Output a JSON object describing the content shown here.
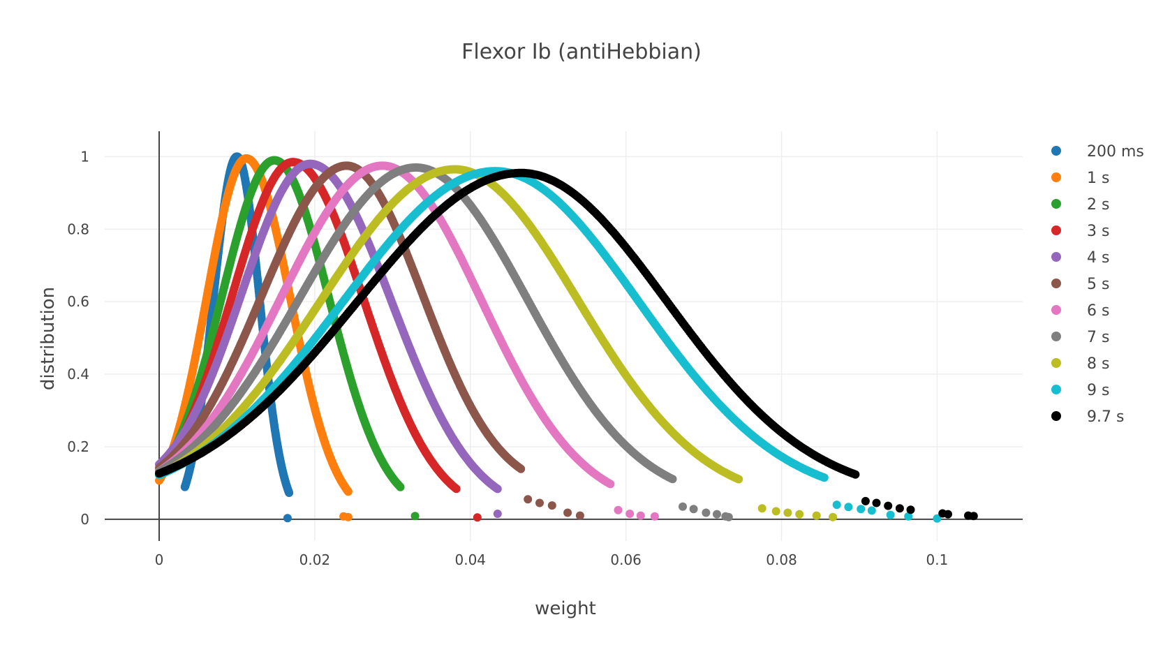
{
  "chart_data": {
    "type": "scatter",
    "title": "Flexor Ib (antiHebbian)",
    "xlabel": "weight",
    "ylabel": "distribution",
    "xlim": [
      -0.007,
      0.111
    ],
    "ylim": [
      -0.06,
      1.07
    ],
    "xticks": [
      0,
      0.02,
      0.04,
      0.06,
      0.08,
      0.1
    ],
    "xtick_labels": [
      "0",
      "0.02",
      "0.04",
      "0.06",
      "0.08",
      "0.1"
    ],
    "yticks": [
      0,
      0.2,
      0.4,
      0.6,
      0.8,
      1
    ],
    "ytick_labels": [
      "0",
      "0.2",
      "0.4",
      "0.6",
      "0.8",
      "1"
    ],
    "grid": true,
    "legend_position": "right",
    "series": [
      {
        "name": "200 ms",
        "color": "#1f77b4",
        "start": 0.0033,
        "end": 0.0167,
        "peak_x": 0.01,
        "peak_y": 1.0,
        "y_start": 0.0,
        "y_end": 0.002,
        "tail_points": [
          [
            0.0165,
            0.003
          ]
        ]
      },
      {
        "name": "1 s",
        "color": "#ff7f0e",
        "start": 0.0,
        "end": 0.0243,
        "peak_x": 0.0112,
        "peak_y": 0.995,
        "y_start": 0.02,
        "y_end": 0.006,
        "tail_points": [
          [
            0.0237,
            0.008
          ],
          [
            0.0243,
            0.006
          ]
        ]
      },
      {
        "name": "2 s",
        "color": "#2ca02c",
        "start": 0.0,
        "end": 0.031,
        "peak_x": 0.0148,
        "peak_y": 0.99,
        "y_start": 0.04,
        "y_end": 0.02,
        "tail_points": [
          [
            0.0329,
            0.009
          ]
        ]
      },
      {
        "name": "3 s",
        "color": "#d62728",
        "start": 0.0,
        "end": 0.0382,
        "peak_x": 0.0172,
        "peak_y": 0.985,
        "y_start": 0.05,
        "y_end": 0.015,
        "tail_points": [
          [
            0.0409,
            0.005
          ]
        ]
      },
      {
        "name": "4 s",
        "color": "#9467bd",
        "start": 0.0,
        "end": 0.0435,
        "peak_x": 0.0194,
        "peak_y": 0.98,
        "y_start": 0.07,
        "y_end": 0.015,
        "tail_points": [
          [
            0.0435,
            0.015
          ]
        ]
      },
      {
        "name": "5 s",
        "color": "#8c564b",
        "start": 0.0,
        "end": 0.0465,
        "peak_x": 0.0241,
        "peak_y": 0.975,
        "y_start": 0.06,
        "y_end": 0.075,
        "tail_points": [
          [
            0.0474,
            0.055
          ],
          [
            0.0489,
            0.045
          ],
          [
            0.0505,
            0.038
          ],
          [
            0.0525,
            0.018
          ],
          [
            0.0541,
            0.01
          ]
        ]
      },
      {
        "name": "6 s",
        "color": "#e377c2",
        "start": 0.0,
        "end": 0.058,
        "peak_x": 0.0287,
        "peak_y": 0.975,
        "y_start": 0.05,
        "y_end": 0.03,
        "tail_points": [
          [
            0.059,
            0.025
          ],
          [
            0.0605,
            0.015
          ],
          [
            0.0619,
            0.01
          ],
          [
            0.0637,
            0.008
          ]
        ]
      },
      {
        "name": "7 s",
        "color": "#7f7f7f",
        "start": 0.0,
        "end": 0.066,
        "peak_x": 0.033,
        "peak_y": 0.97,
        "y_start": 0.05,
        "y_end": 0.045,
        "tail_points": [
          [
            0.0673,
            0.035
          ],
          [
            0.0687,
            0.028
          ],
          [
            0.0703,
            0.018
          ],
          [
            0.0717,
            0.014
          ],
          [
            0.0728,
            0.008
          ],
          [
            0.0732,
            0.006
          ]
        ]
      },
      {
        "name": "8 s",
        "color": "#bcbd22",
        "start": 0.0,
        "end": 0.0745,
        "peak_x": 0.038,
        "peak_y": 0.965,
        "y_start": 0.04,
        "y_end": 0.045,
        "tail_points": [
          [
            0.0775,
            0.03
          ],
          [
            0.0793,
            0.022
          ],
          [
            0.0808,
            0.018
          ],
          [
            0.0823,
            0.014
          ],
          [
            0.0845,
            0.01
          ],
          [
            0.0866,
            0.006
          ]
        ]
      },
      {
        "name": "9 s",
        "color": "#17becf",
        "start": 0.0,
        "end": 0.0855,
        "peak_x": 0.0432,
        "peak_y": 0.96,
        "y_start": 0.04,
        "y_end": 0.05,
        "tail_points": [
          [
            0.0871,
            0.04
          ],
          [
            0.0886,
            0.034
          ],
          [
            0.0902,
            0.028
          ],
          [
            0.0916,
            0.024
          ],
          [
            0.094,
            0.012
          ],
          [
            0.0963,
            0.008
          ],
          [
            0.1,
            0.002
          ]
        ]
      },
      {
        "name": "9.7 s",
        "color": "#000000",
        "start": 0.0,
        "end": 0.0895,
        "peak_x": 0.0465,
        "peak_y": 0.955,
        "y_start": 0.045,
        "y_end": 0.06,
        "tail_points": [
          [
            0.0908,
            0.05
          ],
          [
            0.0922,
            0.045
          ],
          [
            0.0937,
            0.037
          ],
          [
            0.0952,
            0.03
          ],
          [
            0.0966,
            0.026
          ],
          [
            0.1007,
            0.016
          ],
          [
            0.1014,
            0.014
          ],
          [
            0.104,
            0.01
          ],
          [
            0.1047,
            0.009
          ]
        ]
      }
    ]
  }
}
